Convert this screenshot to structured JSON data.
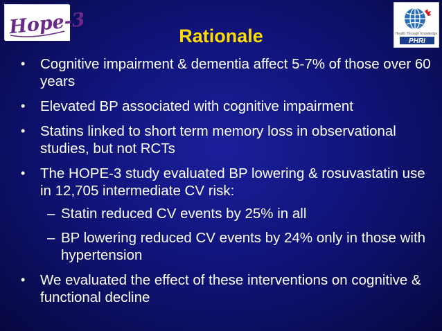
{
  "logos": {
    "left_text": "Hope-3",
    "right_tagline": "Health Through Knowledge",
    "right_text": "PHRI"
  },
  "slide": {
    "title": "Rationale",
    "bullets": [
      {
        "text": "Cognitive impairment & dementia affect 5-7% of those over 60 years"
      },
      {
        "text": "Elevated BP associated with cognitive impairment"
      },
      {
        "text": "Statins linked to short term memory loss in observational studies, but not RCTs"
      },
      {
        "text": "The HOPE-3 study evaluated BP lowering & rosuvastatin use in 12,705 intermediate CV risk:",
        "sub": [
          "Statin reduced CV events by 25% in all",
          "BP lowering reduced CV events by 24% only in those with hypertension"
        ]
      },
      {
        "text": "We evaluated the effect of these interventions on cognitive & functional decline"
      }
    ]
  },
  "colors": {
    "background": "#10147a",
    "title": "#ffdd00",
    "text": "#ffffff",
    "logo_left_text": "#6a2a8a"
  }
}
